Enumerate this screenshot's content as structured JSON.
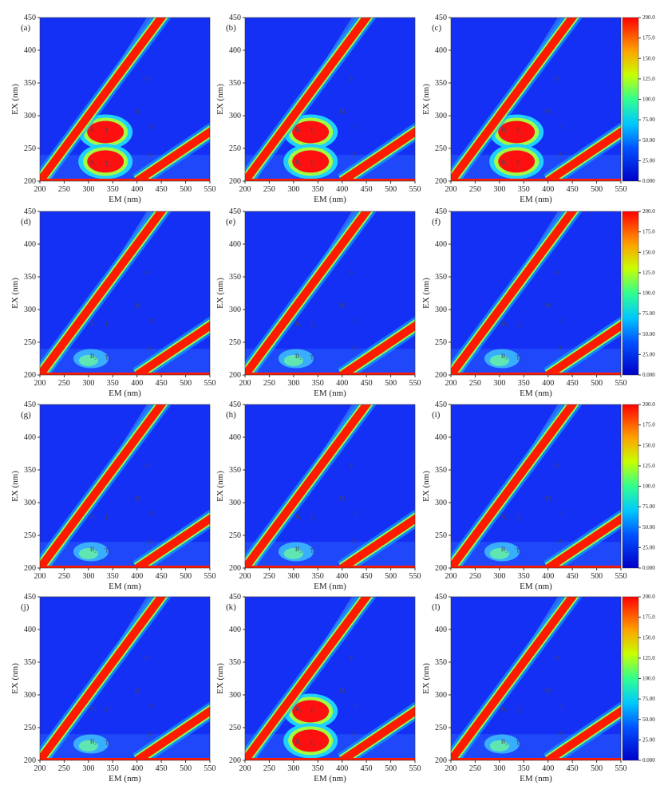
{
  "chart_data": [
    {
      "type": "contour",
      "panel": "(a)",
      "xlabel": "EM (nm)",
      "ylabel": "EX (nm)",
      "xlim": [
        200,
        550
      ],
      "ylim": [
        200,
        450
      ],
      "xticks": [
        200,
        250,
        300,
        350,
        400,
        450,
        500,
        550
      ],
      "yticks": [
        200,
        250,
        300,
        350,
        400,
        450
      ],
      "annotations": [
        "F",
        "M",
        "B₁",
        "T₁",
        "C",
        "B₂",
        "T₂",
        "A"
      ]
    },
    {
      "type": "contour",
      "panel": "(b)",
      "xlabel": "EM (nm)",
      "ylabel": "EX (nm)",
      "xlim": [
        200,
        550
      ],
      "ylim": [
        200,
        450
      ],
      "xticks": [
        200,
        250,
        300,
        350,
        400,
        450,
        500,
        550
      ],
      "yticks": [
        200,
        250,
        300,
        350,
        400,
        450
      ],
      "annotations": [
        "F",
        "M",
        "B₁",
        "T₁",
        "C",
        "B₂",
        "T₂",
        "A"
      ]
    },
    {
      "type": "contour",
      "panel": "(c)",
      "xlabel": "EM (nm)",
      "ylabel": "EX (nm)",
      "xlim": [
        200,
        550
      ],
      "ylim": [
        200,
        450
      ],
      "xticks": [
        200,
        250,
        300,
        350,
        400,
        450,
        500,
        550
      ],
      "yticks": [
        200,
        250,
        300,
        350,
        400,
        450
      ],
      "annotations": [
        "F",
        "M",
        "B₁",
        "T₁",
        "C",
        "B₂",
        "T₂",
        "A"
      ],
      "colorbar": {
        "lim": [
          0,
          200
        ],
        "ticks": [
          {
            "value": 0,
            "label": "0.000"
          },
          {
            "value": 25,
            "label": "25.00"
          },
          {
            "value": 50,
            "label": "50.00"
          },
          {
            "value": 75,
            "label": "75.00"
          },
          {
            "value": 100,
            "label": "100.0"
          },
          {
            "value": 125,
            "label": "125.0"
          },
          {
            "value": 150,
            "label": "150.0"
          },
          {
            "value": 175,
            "label": "175.0"
          },
          {
            "value": 200,
            "label": "200.0"
          }
        ]
      }
    },
    {
      "type": "contour",
      "panel": "(d)",
      "xlabel": "EM (nm)",
      "ylabel": "EX (nm)",
      "xlim": [
        200,
        550
      ],
      "ylim": [
        200,
        450
      ],
      "xticks": [
        200,
        250,
        300,
        350,
        400,
        450,
        500,
        550
      ],
      "yticks": [
        200,
        250,
        300,
        350,
        400,
        450
      ],
      "annotations": [
        "F",
        "M",
        "B₁",
        "T₁",
        "C",
        "B₂",
        "T₂",
        "A"
      ]
    },
    {
      "type": "contour",
      "panel": "(e)",
      "xlabel": "EM (nm)",
      "ylabel": "EX (nm)",
      "xlim": [
        200,
        550
      ],
      "ylim": [
        200,
        450
      ],
      "xticks": [
        200,
        250,
        300,
        350,
        400,
        450,
        500,
        550
      ],
      "yticks": [
        200,
        250,
        300,
        350,
        400,
        450
      ],
      "annotations": [
        "F",
        "M",
        "B₁",
        "T₁",
        "C",
        "B₂",
        "T₂",
        "A"
      ]
    },
    {
      "type": "contour",
      "panel": "(f)",
      "xlabel": "EM (nm)",
      "ylabel": "EX (nm)",
      "xlim": [
        200,
        550
      ],
      "ylim": [
        200,
        450
      ],
      "xticks": [
        200,
        250,
        300,
        350,
        400,
        450,
        500,
        550
      ],
      "yticks": [
        200,
        250,
        300,
        350,
        400,
        450
      ],
      "annotations": [
        "F",
        "M",
        "B₁",
        "T₁",
        "C",
        "B₂",
        "T₂",
        "A"
      ],
      "colorbar": {
        "lim": [
          0,
          200
        ],
        "ticks": [
          {
            "value": 0,
            "label": "0.000"
          },
          {
            "value": 25,
            "label": "25.00"
          },
          {
            "value": 50,
            "label": "50.00"
          },
          {
            "value": 75,
            "label": "75.00"
          },
          {
            "value": 100,
            "label": "100.0"
          },
          {
            "value": 125,
            "label": "125.0"
          },
          {
            "value": 150,
            "label": "150.0"
          },
          {
            "value": 175,
            "label": "175.0"
          },
          {
            "value": 200,
            "label": "200.0"
          }
        ]
      }
    },
    {
      "type": "contour",
      "panel": "(g)",
      "xlabel": "EM (nm)",
      "ylabel": "EX (nm)",
      "xlim": [
        200,
        550
      ],
      "ylim": [
        200,
        450
      ],
      "xticks": [
        200,
        250,
        300,
        350,
        400,
        450,
        500,
        550
      ],
      "yticks": [
        200,
        250,
        300,
        350,
        400,
        450
      ],
      "annotations": [
        "F",
        "M",
        "B₁",
        "T₁",
        "C",
        "B₂",
        "T₂",
        "A"
      ]
    },
    {
      "type": "contour",
      "panel": "(h)",
      "xlabel": "EM (nm)",
      "ylabel": "EX (nm)",
      "xlim": [
        200,
        550
      ],
      "ylim": [
        200,
        450
      ],
      "xticks": [
        200,
        250,
        300,
        350,
        400,
        450,
        500,
        550
      ],
      "yticks": [
        200,
        250,
        300,
        350,
        400,
        450
      ],
      "annotations": [
        "F",
        "M",
        "B₁",
        "T₁",
        "C",
        "B₂",
        "T₂",
        "A"
      ]
    },
    {
      "type": "contour",
      "panel": "(i)",
      "xlabel": "EM (nm)",
      "ylabel": "EX (nm)",
      "xlim": [
        200,
        550
      ],
      "ylim": [
        200,
        450
      ],
      "xticks": [
        200,
        250,
        300,
        350,
        400,
        450,
        500,
        550
      ],
      "yticks": [
        200,
        250,
        300,
        350,
        400,
        450
      ],
      "annotations": [
        "F",
        "M",
        "B₁",
        "T₁",
        "C",
        "B₂",
        "T₂",
        "A"
      ],
      "colorbar": {
        "lim": [
          0,
          200
        ],
        "ticks": [
          {
            "value": 0,
            "label": "0.000"
          },
          {
            "value": 25,
            "label": "25.00"
          },
          {
            "value": 50,
            "label": "50.00"
          },
          {
            "value": 75,
            "label": "75.00"
          },
          {
            "value": 100,
            "label": "100.0"
          },
          {
            "value": 125,
            "label": "125.0"
          },
          {
            "value": 150,
            "label": "150.0"
          },
          {
            "value": 175,
            "label": "175.0"
          },
          {
            "value": 200,
            "label": "200.0"
          }
        ]
      }
    },
    {
      "type": "contour",
      "panel": "(j)",
      "xlabel": "EM (nm)",
      "ylabel": "EX (nm)",
      "xlim": [
        200,
        550
      ],
      "ylim": [
        200,
        450
      ],
      "xticks": [
        200,
        250,
        300,
        350,
        400,
        450,
        500,
        550
      ],
      "yticks": [
        200,
        250,
        300,
        350,
        400,
        450
      ],
      "annotations": [
        "F",
        "M",
        "B₁",
        "T₁",
        "C",
        "B₂",
        "T₂",
        "A"
      ]
    },
    {
      "type": "contour",
      "panel": "(k)",
      "xlabel": "EM (nm)",
      "ylabel": "EX (nm)",
      "xlim": [
        200,
        550
      ],
      "ylim": [
        200,
        450
      ],
      "xticks": [
        200,
        250,
        300,
        350,
        400,
        450,
        500,
        550
      ],
      "yticks": [
        200,
        250,
        300,
        350,
        400,
        450
      ],
      "annotations": [
        "F",
        "M",
        "B₁",
        "T₁",
        "C",
        "B₂",
        "T₂",
        "A"
      ]
    },
    {
      "type": "contour",
      "panel": "(l)",
      "xlabel": "EM (nm)",
      "ylabel": "EX (nm)",
      "xlim": [
        200,
        550
      ],
      "ylim": [
        200,
        450
      ],
      "xticks": [
        200,
        250,
        300,
        350,
        400,
        450,
        500,
        550
      ],
      "yticks": [
        200,
        250,
        300,
        350,
        400,
        450
      ],
      "annotations": [
        "F",
        "M",
        "B₁",
        "T₁",
        "C",
        "B₂",
        "T₂",
        "A"
      ],
      "colorbar": {
        "lim": [
          0,
          200
        ],
        "ticks": [
          {
            "value": 0,
            "label": "0.000"
          },
          {
            "value": 25,
            "label": "25.00"
          },
          {
            "value": 50,
            "label": "50.00"
          },
          {
            "value": 75,
            "label": "75.00"
          },
          {
            "value": 100,
            "label": "100.0"
          },
          {
            "value": 125,
            "label": "125.0"
          },
          {
            "value": 150,
            "label": "150.0"
          },
          {
            "value": 175,
            "label": "175.0"
          },
          {
            "value": 200,
            "label": "200.0"
          }
        ]
      }
    }
  ]
}
